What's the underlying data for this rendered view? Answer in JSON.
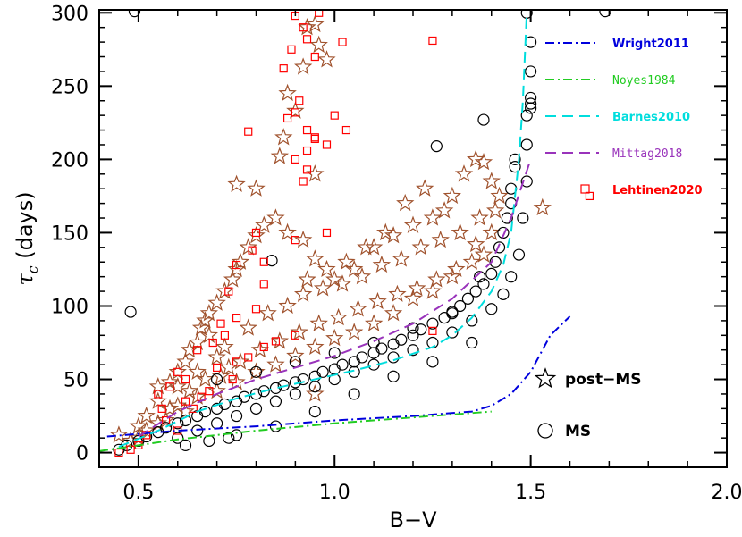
{
  "chart_data": {
    "type": "scatter",
    "xlabel": "B−V",
    "ylabel": "τc (days)",
    "xlim": [
      0.4,
      2.0
    ],
    "ylim": [
      -10,
      302
    ],
    "xticks": [
      "0.5",
      "1.0",
      "1.5",
      "2.0"
    ],
    "yticks": [
      "0",
      "50",
      "100",
      "150",
      "200",
      "250",
      "300"
    ],
    "grid": false,
    "legend_placement": "top-right",
    "marker_legend": {
      "post_ms": "post−MS",
      "ms": "MS"
    },
    "scatter_series": [
      {
        "name": "post−MS",
        "marker": "star",
        "color": "#a0522d",
        "points": [
          [
            0.45,
            12
          ],
          [
            0.5,
            18
          ],
          [
            0.52,
            25
          ],
          [
            0.55,
            35
          ],
          [
            0.55,
            45
          ],
          [
            0.58,
            48
          ],
          [
            0.6,
            55
          ],
          [
            0.62,
            62
          ],
          [
            0.63,
            70
          ],
          [
            0.65,
            75
          ],
          [
            0.66,
            85
          ],
          [
            0.67,
            90
          ],
          [
            0.68,
            95
          ],
          [
            0.7,
            102
          ],
          [
            0.72,
            110
          ],
          [
            0.74,
            118
          ],
          [
            0.75,
            125
          ],
          [
            0.76,
            130
          ],
          [
            0.78,
            140
          ],
          [
            0.8,
            148
          ],
          [
            0.82,
            155
          ],
          [
            0.85,
            160
          ],
          [
            0.88,
            150
          ],
          [
            0.75,
            183
          ],
          [
            0.8,
            180
          ],
          [
            0.88,
            245
          ],
          [
            0.9,
            233
          ],
          [
            0.92,
            263
          ],
          [
            0.93,
            290
          ],
          [
            0.95,
            292
          ],
          [
            0.96,
            278
          ],
          [
            0.98,
            268
          ],
          [
            0.87,
            215
          ],
          [
            0.86,
            202
          ],
          [
            0.95,
            190
          ],
          [
            0.92,
            145
          ],
          [
            0.95,
            132
          ],
          [
            1.0,
            118
          ],
          [
            1.05,
            125
          ],
          [
            1.1,
            140
          ],
          [
            1.15,
            148
          ],
          [
            1.2,
            155
          ],
          [
            1.25,
            160
          ],
          [
            1.3,
            175
          ],
          [
            1.33,
            190
          ],
          [
            1.36,
            200
          ],
          [
            1.38,
            198
          ],
          [
            1.4,
            185
          ],
          [
            1.42,
            175
          ],
          [
            1.38,
            135
          ],
          [
            1.35,
            130
          ],
          [
            1.3,
            120
          ],
          [
            1.25,
            110
          ],
          [
            1.2,
            105
          ],
          [
            1.15,
            95
          ],
          [
            1.1,
            88
          ],
          [
            1.05,
            82
          ],
          [
            1.0,
            78
          ],
          [
            0.95,
            72
          ],
          [
            0.9,
            66
          ],
          [
            0.85,
            60
          ],
          [
            0.8,
            55
          ],
          [
            0.75,
            48
          ],
          [
            0.7,
            42
          ],
          [
            0.65,
            38
          ],
          [
            0.6,
            32
          ],
          [
            0.57,
            22
          ],
          [
            0.52,
            15
          ],
          [
            0.48,
            8
          ],
          [
            1.53,
            167
          ],
          [
            0.95,
            40
          ],
          [
            0.7,
            65
          ],
          [
            0.65,
            55
          ],
          [
            0.6,
            45
          ],
          [
            0.68,
            80
          ],
          [
            0.72,
            72
          ],
          [
            0.78,
            85
          ],
          [
            0.83,
            95
          ],
          [
            0.88,
            100
          ],
          [
            0.92,
            108
          ],
          [
            0.97,
            112
          ],
          [
            1.02,
            115
          ],
          [
            1.07,
            120
          ],
          [
            1.12,
            128
          ],
          [
            1.17,
            132
          ],
          [
            1.22,
            140
          ],
          [
            1.27,
            145
          ],
          [
            1.32,
            150
          ],
          [
            1.37,
            160
          ],
          [
            1.41,
            165
          ],
          [
            1.28,
            165
          ],
          [
            1.23,
            180
          ],
          [
            1.18,
            170
          ],
          [
            1.13,
            150
          ],
          [
            1.08,
            140
          ],
          [
            1.03,
            130
          ],
          [
            0.98,
            125
          ],
          [
            0.93,
            118
          ],
          [
            0.63,
            42
          ],
          [
            0.58,
            30
          ],
          [
            0.73,
            58
          ],
          [
            0.76,
            62
          ],
          [
            0.81,
            70
          ],
          [
            0.86,
            76
          ],
          [
            0.91,
            82
          ],
          [
            0.96,
            88
          ],
          [
            1.01,
            92
          ],
          [
            1.06,
            98
          ],
          [
            1.11,
            103
          ],
          [
            1.16,
            108
          ],
          [
            1.21,
            112
          ],
          [
            1.26,
            118
          ],
          [
            1.31,
            125
          ],
          [
            1.36,
            142
          ],
          [
            1.4,
            150
          ],
          [
            0.67,
            50
          ],
          [
            0.71,
            52
          ],
          [
            0.62,
            28
          ],
          [
            0.55,
            20
          ],
          [
            0.5,
            10
          ]
        ]
      },
      {
        "name": "MS",
        "marker": "circle",
        "color": "#000000",
        "points": [
          [
            0.49,
            301
          ],
          [
            1.69,
            301
          ],
          [
            1.49,
            300
          ],
          [
            0.48,
            96
          ],
          [
            0.84,
            131
          ],
          [
            1.26,
            209
          ],
          [
            1.38,
            227
          ],
          [
            1.5,
            242
          ],
          [
            1.5,
            238
          ],
          [
            1.49,
            230
          ],
          [
            1.5,
            235
          ],
          [
            1.46,
            200
          ],
          [
            1.46,
            195
          ],
          [
            1.45,
            180
          ],
          [
            1.45,
            170
          ],
          [
            1.44,
            160
          ],
          [
            1.43,
            150
          ],
          [
            1.42,
            140
          ],
          [
            1.41,
            130
          ],
          [
            1.4,
            122
          ],
          [
            1.38,
            115
          ],
          [
            1.36,
            110
          ],
          [
            1.34,
            105
          ],
          [
            1.32,
            100
          ],
          [
            1.3,
            96
          ],
          [
            1.28,
            92
          ],
          [
            1.25,
            88
          ],
          [
            1.22,
            84
          ],
          [
            1.2,
            80
          ],
          [
            1.17,
            77
          ],
          [
            1.15,
            74
          ],
          [
            1.12,
            71
          ],
          [
            1.1,
            68
          ],
          [
            1.07,
            65
          ],
          [
            1.05,
            62
          ],
          [
            1.02,
            60
          ],
          [
            1.0,
            57
          ],
          [
            0.97,
            55
          ],
          [
            0.95,
            52
          ],
          [
            0.92,
            50
          ],
          [
            0.9,
            48
          ],
          [
            0.87,
            46
          ],
          [
            0.85,
            44
          ],
          [
            0.82,
            42
          ],
          [
            0.8,
            40
          ],
          [
            0.77,
            38
          ],
          [
            0.75,
            35
          ],
          [
            0.72,
            33
          ],
          [
            0.7,
            30
          ],
          [
            0.67,
            28
          ],
          [
            0.65,
            25
          ],
          [
            0.62,
            22
          ],
          [
            0.6,
            20
          ],
          [
            0.57,
            17
          ],
          [
            0.55,
            14
          ],
          [
            0.52,
            11
          ],
          [
            0.5,
            8
          ],
          [
            0.47,
            5
          ],
          [
            0.45,
            2
          ],
          [
            0.6,
            10
          ],
          [
            0.65,
            15
          ],
          [
            0.7,
            20
          ],
          [
            0.75,
            25
          ],
          [
            0.8,
            30
          ],
          [
            0.85,
            35
          ],
          [
            0.9,
            40
          ],
          [
            0.95,
            45
          ],
          [
            1.0,
            50
          ],
          [
            1.05,
            55
          ],
          [
            1.1,
            60
          ],
          [
            1.15,
            65
          ],
          [
            1.2,
            70
          ],
          [
            1.25,
            75
          ],
          [
            1.3,
            82
          ],
          [
            1.35,
            90
          ],
          [
            1.4,
            98
          ],
          [
            1.43,
            108
          ],
          [
            1.45,
            120
          ],
          [
            1.47,
            135
          ],
          [
            1.48,
            160
          ],
          [
            1.49,
            185
          ],
          [
            1.49,
            210
          ],
          [
            1.5,
            260
          ],
          [
            1.5,
            280
          ],
          [
            0.7,
            50
          ],
          [
            0.8,
            55
          ],
          [
            0.9,
            62
          ],
          [
            1.0,
            68
          ],
          [
            1.1,
            75
          ],
          [
            1.2,
            85
          ],
          [
            1.3,
            95
          ],
          [
            1.37,
            120
          ],
          [
            0.75,
            12
          ],
          [
            0.85,
            18
          ],
          [
            0.95,
            28
          ],
          [
            1.05,
            40
          ],
          [
            1.15,
            52
          ],
          [
            1.25,
            62
          ],
          [
            1.35,
            75
          ],
          [
            0.73,
            10
          ],
          [
            0.68,
            8
          ],
          [
            0.62,
            5
          ]
        ]
      },
      {
        "name": "Lehtinen2020",
        "marker": "square",
        "color": "#ff0000",
        "points": [
          [
            0.9,
            298
          ],
          [
            0.92,
            290
          ],
          [
            0.93,
            282
          ],
          [
            0.95,
            270
          ],
          [
            0.96,
            300
          ],
          [
            1.02,
            280
          ],
          [
            1.25,
            281
          ],
          [
            0.87,
            262
          ],
          [
            0.89,
            275
          ],
          [
            0.91,
            240
          ],
          [
            0.9,
            232
          ],
          [
            0.88,
            228
          ],
          [
            0.95,
            215
          ],
          [
            0.98,
            210
          ],
          [
            1.0,
            230
          ],
          [
            0.93,
            220
          ],
          [
            1.03,
            220
          ],
          [
            0.93,
            206
          ],
          [
            0.95,
            214
          ],
          [
            0.78,
            219
          ],
          [
            0.9,
            200
          ],
          [
            0.93,
            193
          ],
          [
            0.92,
            185
          ],
          [
            0.98,
            150
          ],
          [
            0.9,
            145
          ],
          [
            0.8,
            150
          ],
          [
            0.79,
            138
          ],
          [
            0.82,
            130
          ],
          [
            0.75,
            128
          ],
          [
            0.82,
            115
          ],
          [
            0.73,
            110
          ],
          [
            0.8,
            98
          ],
          [
            0.75,
            92
          ],
          [
            0.71,
            88
          ],
          [
            0.72,
            80
          ],
          [
            0.69,
            75
          ],
          [
            0.65,
            70
          ],
          [
            0.6,
            55
          ],
          [
            0.55,
            40
          ],
          [
            0.58,
            45
          ],
          [
            0.62,
            50
          ],
          [
            0.7,
            58
          ],
          [
            0.75,
            62
          ],
          [
            0.68,
            42
          ],
          [
            0.66,
            38
          ],
          [
            0.64,
            30
          ],
          [
            0.57,
            22
          ],
          [
            0.52,
            12
          ],
          [
            0.48,
            2
          ],
          [
            0.45,
            0
          ],
          [
            0.5,
            5
          ],
          [
            0.6,
            15
          ],
          [
            1.65,
            175
          ],
          [
            1.25,
            83
          ],
          [
            0.78,
            65
          ],
          [
            0.82,
            72
          ],
          [
            0.85,
            76
          ],
          [
            0.9,
            80
          ],
          [
            0.74,
            50
          ],
          [
            0.62,
            35
          ],
          [
            0.56,
            30
          ]
        ]
      }
    ],
    "lines": [
      {
        "name": "Wright2011",
        "color": "#0000dd",
        "dash": "dashdot",
        "x": [
          0.42,
          0.6,
          0.8,
          1.0,
          1.2,
          1.35,
          1.4,
          1.45,
          1.5,
          1.55,
          1.6
        ],
        "y": [
          11,
          15,
          18,
          22,
          25,
          28,
          32,
          40,
          55,
          80,
          93
        ]
      },
      {
        "name": "Noyes1984",
        "color": "#22cc22",
        "dash": "dashdot",
        "x": [
          0.4,
          0.6,
          0.8,
          1.0,
          1.2,
          1.4
        ],
        "y": [
          1,
          9,
          15,
          20,
          24,
          28
        ]
      },
      {
        "name": "Barnes2010",
        "color": "#00dddd",
        "dash": "dashed",
        "x": [
          0.45,
          0.55,
          0.65,
          0.75,
          0.85,
          0.95,
          1.05,
          1.15,
          1.25,
          1.3,
          1.35,
          1.4,
          1.43,
          1.45,
          1.46,
          1.47,
          1.48,
          1.49
        ],
        "y": [
          4,
          15,
          28,
          37,
          44,
          50,
          56,
          63,
          72,
          80,
          92,
          110,
          128,
          150,
          175,
          200,
          240,
          300
        ]
      },
      {
        "name": "Mittag2018",
        "color": "#9933bb",
        "dash": "dashed",
        "x": [
          0.5,
          0.6,
          0.7,
          0.8,
          0.9,
          1.0,
          1.1,
          1.2,
          1.3,
          1.4,
          1.45,
          1.5
        ],
        "y": [
          11,
          28,
          40,
          50,
          58,
          66,
          76,
          88,
          105,
          130,
          160,
          200
        ]
      }
    ]
  }
}
